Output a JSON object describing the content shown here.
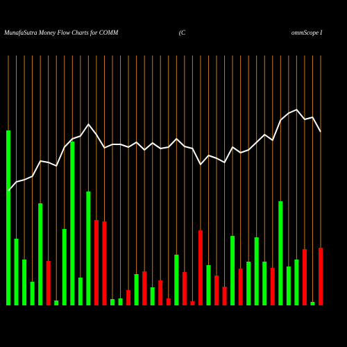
{
  "chart_data": {
    "type": "bar",
    "title_parts": [
      "MunafaSutra  Money Flow  Charts for COMM",
      "(C",
      "ommScope   I"
    ],
    "categories": [
      null,
      null,
      null,
      null,
      null,
      null,
      null,
      null,
      null,
      null,
      null,
      null,
      null,
      null,
      null,
      null,
      null,
      null,
      null,
      null,
      null,
      null,
      null,
      null,
      null,
      null,
      null,
      null,
      null,
      null,
      null,
      null,
      null,
      null,
      null,
      null,
      null,
      null,
      null,
      null
    ],
    "values": [
      252,
      96,
      66,
      34,
      147,
      64,
      7,
      110,
      236,
      40,
      164,
      123,
      121,
      9,
      10,
      22,
      45,
      49,
      26,
      36,
      10,
      73,
      48,
      6,
      108,
      58,
      43,
      27,
      100,
      53,
      63,
      98,
      63,
      54,
      150,
      56,
      66,
      81,
      5,
      83
    ],
    "bar_colors": [
      "#00ff00",
      "#00ff00",
      "#00ff00",
      "#00ff00",
      "#00ff00",
      "#ff0000",
      "#00ff00",
      "#00ff00",
      "#00ff00",
      "#00ff00",
      "#00ff00",
      "#ff0000",
      "#ff0000",
      "#00ff00",
      "#00ff00",
      "#ff0000",
      "#00ff00",
      "#ff0000",
      "#00ff00",
      "#ff0000",
      "#ff0000",
      "#00ff00",
      "#ff0000",
      "#ff0000",
      "#ff0000",
      "#00ff00",
      "#ff0000",
      "#ff0000",
      "#00ff00",
      "#ff0000",
      "#00ff00",
      "#00ff00",
      "#00ff00",
      "#ff0000",
      "#00ff00",
      "#00ff00",
      "#00ff00",
      "#ff0000",
      "#00ff00",
      "#ff0000"
    ],
    "line": {
      "color": "#ffffff",
      "values": [
        165,
        178,
        181,
        186,
        208,
        206,
        201,
        228,
        240,
        244,
        261,
        246,
        227,
        232,
        232,
        228,
        235,
        224,
        234,
        226,
        228,
        240,
        229,
        226,
        203,
        216,
        212,
        206,
        228,
        220,
        224,
        235,
        246,
        238,
        267,
        277,
        282,
        268,
        271,
        250
      ]
    },
    "ylim": [
      0,
      360
    ],
    "gridline_color": "#c87a1e"
  }
}
